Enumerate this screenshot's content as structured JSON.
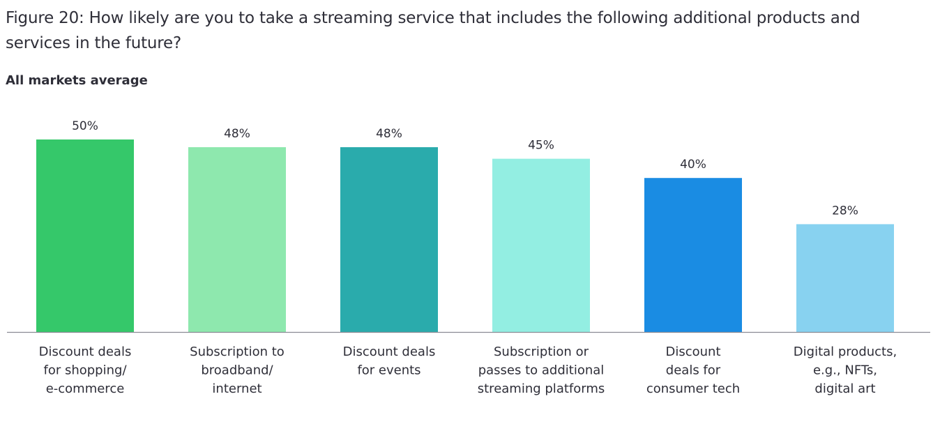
{
  "title": "Figure 20: How likely are you to take a streaming service that includes the following additional products and services in the future?",
  "subtitle": "All markets average",
  "chart_data": {
    "type": "bar",
    "categories": [
      [
        "Discount deals",
        "for shopping/",
        "e-commerce"
      ],
      [
        "Subscription to",
        "broadband/",
        "internet"
      ],
      [
        "Discount deals",
        "for events"
      ],
      [
        "Subscription or",
        "passes to additional",
        "streaming platforms"
      ],
      [
        "Discount",
        "deals for",
        "consumer tech"
      ],
      [
        "Digital products,",
        "e.g., NFTs,",
        "digital art"
      ]
    ],
    "values": [
      50,
      48,
      48,
      45,
      40,
      28
    ],
    "value_labels": [
      "50%",
      "48%",
      "48%",
      "45%",
      "40%",
      "28%"
    ],
    "colors": [
      "#35c86a",
      "#8ee8ae",
      "#2aabac",
      "#93eee2",
      "#1a8ce3",
      "#88d2f0"
    ],
    "ylim": [
      0,
      50
    ],
    "grid": false,
    "legend": "none",
    "xlabel": "",
    "ylabel": ""
  }
}
